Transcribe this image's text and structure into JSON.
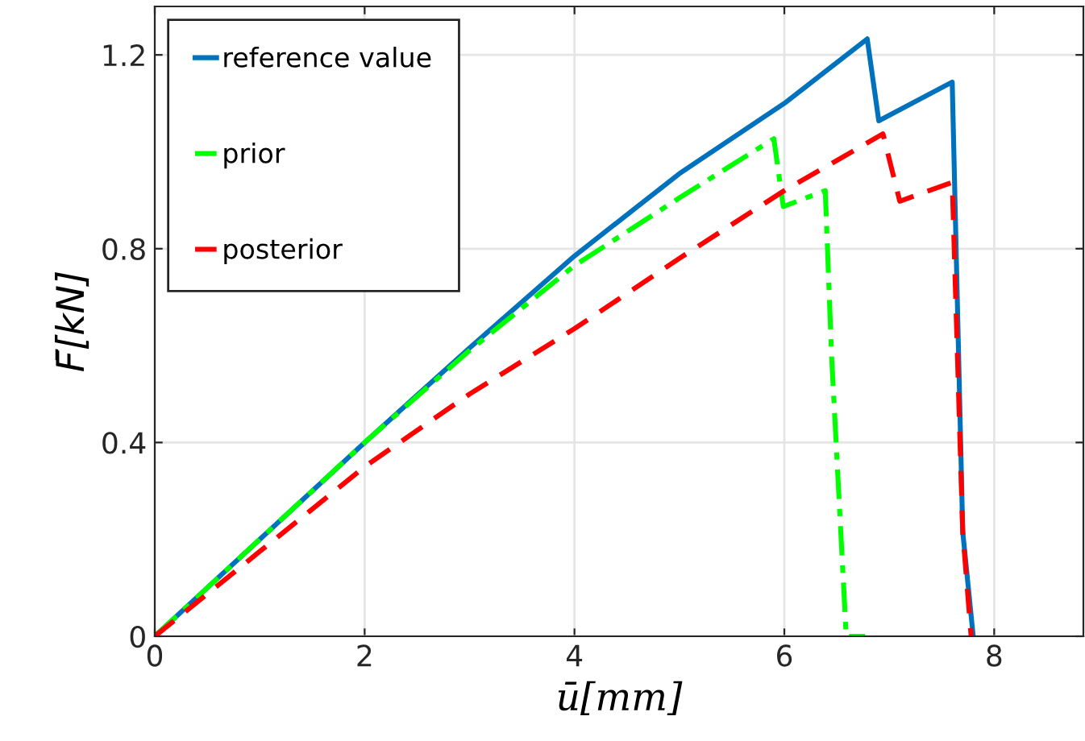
{
  "chart_data": {
    "type": "line",
    "xlabel": "ū[mm]",
    "ylabel": "F̄[kN]",
    "xlim": [
      0,
      8.85
    ],
    "ylim": [
      0,
      1.3
    ],
    "xticks": [
      0,
      2,
      4,
      6,
      8
    ],
    "yticks": [
      0,
      0.4,
      0.8,
      1.2
    ],
    "grid": true,
    "legend": "top left",
    "series": [
      {
        "name": "reference value",
        "color": "#0072bd",
        "line_style": "solid",
        "x": [
          0,
          1,
          2,
          3,
          4,
          5,
          6,
          6.79,
          6.9,
          7.6,
          7.7,
          7.8
        ],
        "values": [
          0,
          0.2,
          0.4,
          0.595,
          0.785,
          0.955,
          1.1,
          1.233,
          1.064,
          1.144,
          0.216,
          0
        ]
      },
      {
        "name": "prior",
        "color": "#00ff00",
        "line_style": "dashdot",
        "x": [
          0,
          1,
          2,
          3,
          4,
          5,
          5.9,
          5.99,
          6.39,
          6.45,
          6.59,
          6.77
        ],
        "values": [
          0,
          0.2,
          0.4,
          0.59,
          0.765,
          0.905,
          1.027,
          0.887,
          0.92,
          0.58,
          0,
          0
        ]
      },
      {
        "name": "posterior",
        "color": "#ff0000",
        "line_style": "dashed",
        "x": [
          0,
          1,
          2,
          3,
          4,
          5,
          6,
          6.94,
          7.1,
          7.6,
          7.7,
          7.78
        ],
        "values": [
          0,
          0.175,
          0.35,
          0.5,
          0.635,
          0.78,
          0.92,
          1.037,
          0.898,
          0.937,
          0.216,
          0
        ]
      }
    ]
  }
}
